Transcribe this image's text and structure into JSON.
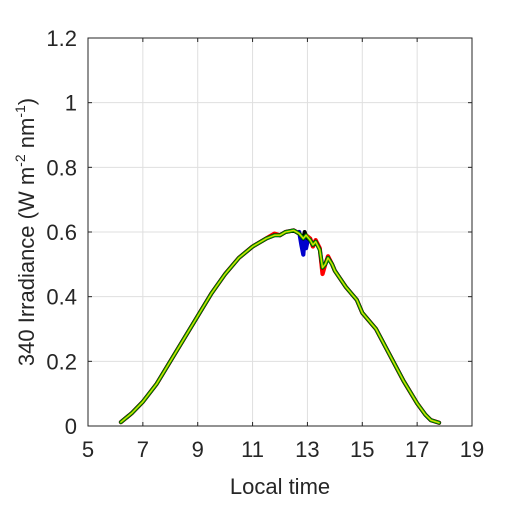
{
  "chart_data": {
    "type": "line",
    "title": "",
    "xlabel": "Local time",
    "ylabel": "340 Irradiance (W m^-2 nm^-1)",
    "ylabel_parts": {
      "prefix": "340 Irradiance (W m",
      "sup1": "-2",
      "middle": " nm",
      "sup2": "-1",
      "suffix": ")"
    },
    "xlim": [
      5,
      19
    ],
    "ylim": [
      0,
      1.2
    ],
    "xticks": [
      5,
      7,
      9,
      11,
      13,
      15,
      17,
      19
    ],
    "xtick_labels": [
      "5",
      "7",
      "9",
      "11",
      "13",
      "15",
      "17",
      "19"
    ],
    "yticks": [
      0,
      0.2,
      0.4,
      0.6,
      0.8,
      1.0,
      1.2
    ],
    "ytick_labels": [
      "0",
      "0.2",
      "0.4",
      "0.6",
      "0.8",
      "1",
      "1.2"
    ],
    "grid": true,
    "colors": {
      "red": "#ff0000",
      "blue": "#0000cc",
      "black": "#000000",
      "green": "#00a000",
      "yellow": "#dddd00",
      "axis": "#262626",
      "grid": "#dfdfdf"
    },
    "series": [
      {
        "color": "red",
        "values": [
          [
            6.2,
            0.012
          ],
          [
            6.6,
            0.04
          ],
          [
            7.0,
            0.075
          ],
          [
            7.5,
            0.13
          ],
          [
            8.0,
            0.2
          ],
          [
            8.5,
            0.27
          ],
          [
            9.0,
            0.34
          ],
          [
            9.5,
            0.41
          ],
          [
            10.0,
            0.47
          ],
          [
            10.5,
            0.52
          ],
          [
            11.0,
            0.555
          ],
          [
            11.5,
            0.58
          ],
          [
            11.8,
            0.595
          ],
          [
            12.0,
            0.59
          ],
          [
            12.2,
            0.6
          ],
          [
            12.5,
            0.605
          ],
          [
            12.7,
            0.595
          ],
          [
            12.85,
            0.575
          ],
          [
            12.95,
            0.59
          ],
          [
            13.1,
            0.58
          ],
          [
            13.2,
            0.555
          ],
          [
            13.3,
            0.575
          ],
          [
            13.45,
            0.55
          ],
          [
            13.55,
            0.47
          ],
          [
            13.65,
            0.5
          ],
          [
            13.75,
            0.525
          ],
          [
            13.9,
            0.5
          ],
          [
            14.0,
            0.48
          ],
          [
            14.2,
            0.455
          ],
          [
            14.4,
            0.43
          ],
          [
            14.6,
            0.41
          ],
          [
            14.8,
            0.39
          ],
          [
            15.0,
            0.35
          ],
          [
            15.5,
            0.3
          ],
          [
            16.0,
            0.22
          ],
          [
            16.5,
            0.14
          ],
          [
            17.0,
            0.07
          ],
          [
            17.3,
            0.035
          ],
          [
            17.5,
            0.018
          ],
          [
            17.8,
            0.01
          ]
        ]
      },
      {
        "color": "blue",
        "values": [
          [
            12.7,
            0.6
          ],
          [
            12.78,
            0.56
          ],
          [
            12.85,
            0.53
          ],
          [
            12.9,
            0.585
          ],
          [
            12.95,
            0.55
          ],
          [
            13.0,
            0.57
          ]
        ]
      },
      {
        "color": "black",
        "values": [
          [
            6.2,
            0.012
          ],
          [
            6.6,
            0.04
          ],
          [
            7.0,
            0.075
          ],
          [
            7.5,
            0.13
          ],
          [
            8.0,
            0.2
          ],
          [
            8.5,
            0.27
          ],
          [
            9.0,
            0.34
          ],
          [
            9.5,
            0.41
          ],
          [
            10.0,
            0.47
          ],
          [
            10.5,
            0.52
          ],
          [
            11.0,
            0.555
          ],
          [
            11.5,
            0.58
          ],
          [
            11.8,
            0.59
          ],
          [
            12.0,
            0.59
          ],
          [
            12.2,
            0.6
          ],
          [
            12.5,
            0.605
          ],
          [
            12.7,
            0.595
          ],
          [
            12.85,
            0.58
          ],
          [
            12.9,
            0.6
          ],
          [
            12.95,
            0.585
          ],
          [
            13.1,
            0.575
          ],
          [
            13.2,
            0.56
          ],
          [
            13.3,
            0.57
          ],
          [
            13.45,
            0.545
          ],
          [
            13.55,
            0.49
          ],
          [
            13.65,
            0.5
          ],
          [
            13.75,
            0.52
          ],
          [
            13.9,
            0.5
          ],
          [
            14.0,
            0.48
          ],
          [
            14.2,
            0.455
          ],
          [
            14.4,
            0.43
          ],
          [
            14.6,
            0.41
          ],
          [
            14.8,
            0.39
          ],
          [
            15.0,
            0.35
          ],
          [
            15.5,
            0.3
          ],
          [
            16.0,
            0.22
          ],
          [
            16.5,
            0.14
          ],
          [
            17.0,
            0.07
          ],
          [
            17.3,
            0.035
          ],
          [
            17.5,
            0.018
          ],
          [
            17.8,
            0.01
          ]
        ]
      },
      {
        "color": "green",
        "values": [
          [
            6.2,
            0.012
          ],
          [
            6.6,
            0.04
          ],
          [
            7.0,
            0.075
          ],
          [
            7.5,
            0.13
          ],
          [
            8.0,
            0.2
          ],
          [
            8.5,
            0.27
          ],
          [
            9.0,
            0.34
          ],
          [
            9.5,
            0.41
          ],
          [
            10.0,
            0.47
          ],
          [
            10.5,
            0.52
          ],
          [
            11.0,
            0.555
          ],
          [
            11.5,
            0.58
          ],
          [
            11.8,
            0.59
          ],
          [
            12.0,
            0.59
          ],
          [
            12.2,
            0.6
          ],
          [
            12.5,
            0.605
          ],
          [
            12.7,
            0.595
          ],
          [
            12.85,
            0.58
          ],
          [
            12.95,
            0.59
          ],
          [
            13.1,
            0.575
          ],
          [
            13.2,
            0.56
          ],
          [
            13.3,
            0.57
          ],
          [
            13.45,
            0.545
          ],
          [
            13.55,
            0.49
          ],
          [
            13.65,
            0.5
          ],
          [
            13.75,
            0.52
          ],
          [
            13.9,
            0.5
          ],
          [
            14.0,
            0.48
          ],
          [
            14.2,
            0.455
          ],
          [
            14.4,
            0.43
          ],
          [
            14.6,
            0.41
          ],
          [
            14.8,
            0.39
          ],
          [
            15.0,
            0.35
          ],
          [
            15.5,
            0.3
          ],
          [
            16.0,
            0.22
          ],
          [
            16.5,
            0.14
          ],
          [
            17.0,
            0.07
          ],
          [
            17.3,
            0.035
          ],
          [
            17.5,
            0.018
          ],
          [
            17.8,
            0.01
          ]
        ]
      },
      {
        "color": "yellow",
        "values": [
          [
            6.2,
            0.012
          ],
          [
            6.6,
            0.04
          ],
          [
            7.0,
            0.075
          ],
          [
            7.5,
            0.13
          ],
          [
            8.0,
            0.2
          ],
          [
            8.5,
            0.27
          ],
          [
            9.0,
            0.34
          ],
          [
            9.5,
            0.41
          ],
          [
            10.0,
            0.47
          ],
          [
            10.5,
            0.52
          ],
          [
            11.0,
            0.555
          ],
          [
            11.5,
            0.58
          ],
          [
            11.8,
            0.59
          ],
          [
            12.0,
            0.59
          ],
          [
            12.2,
            0.6
          ],
          [
            12.5,
            0.605
          ],
          [
            12.7,
            0.595
          ],
          [
            12.85,
            0.58
          ],
          [
            12.95,
            0.59
          ],
          [
            13.1,
            0.575
          ],
          [
            13.2,
            0.56
          ],
          [
            13.3,
            0.57
          ],
          [
            13.45,
            0.545
          ],
          [
            13.55,
            0.49
          ],
          [
            13.65,
            0.5
          ],
          [
            13.75,
            0.52
          ],
          [
            13.9,
            0.5
          ],
          [
            14.0,
            0.48
          ],
          [
            14.2,
            0.455
          ],
          [
            14.4,
            0.43
          ],
          [
            14.6,
            0.41
          ],
          [
            14.8,
            0.39
          ],
          [
            15.0,
            0.35
          ],
          [
            15.5,
            0.3
          ],
          [
            16.0,
            0.22
          ],
          [
            16.5,
            0.14
          ],
          [
            17.0,
            0.07
          ],
          [
            17.3,
            0.035
          ],
          [
            17.5,
            0.018
          ],
          [
            17.8,
            0.01
          ]
        ]
      }
    ]
  }
}
